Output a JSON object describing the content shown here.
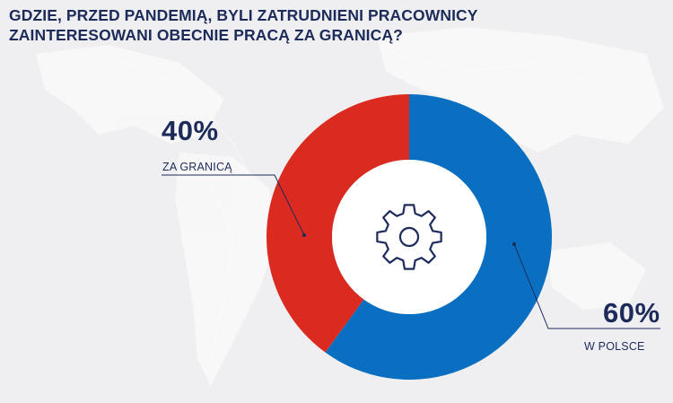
{
  "title_lines": [
    "GDZIE, PRZED PANDEMIĄ, BYLI ZATRUDNIENI PRACOWNICY",
    "ZAINTERESOWANI OBECNIE PRACĄ ZA GRANICĄ?"
  ],
  "chart_data": {
    "type": "pie",
    "donut": true,
    "categories": [
      "ZA GRANICĄ",
      "W POLSCE"
    ],
    "values": [
      40,
      60
    ],
    "value_labels": [
      "40%",
      "60%"
    ],
    "colors": [
      "#db2b21",
      "#0a6fc0"
    ],
    "center_icon": "gear-icon",
    "title": "GDZIE, PRZED PANDEMIĄ, BYLI ZATRUDNIENI PRACOWNICY ZAINTERESOWANI OBECNIE PRACĄ ZA GRANICĄ?",
    "legend": "none"
  },
  "colors": {
    "text": "#1c2b5a",
    "background": "#efeff1"
  }
}
